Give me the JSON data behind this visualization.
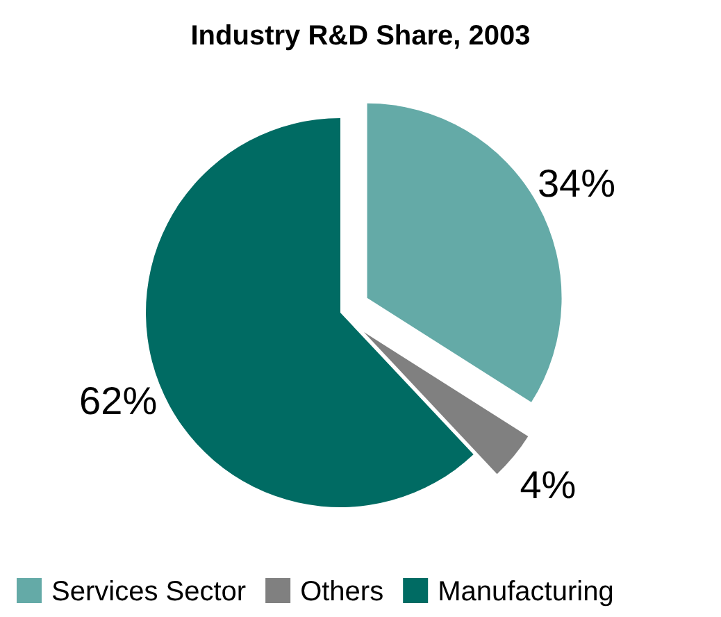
{
  "chart_data": {
    "type": "pie",
    "title": "Industry R&D Share, 2003",
    "categories": [
      "Services Sector",
      "Others",
      "Manufacturing"
    ],
    "values": [
      34,
      4,
      62
    ],
    "colors": [
      "#64aaa7",
      "#808080",
      "#006b63"
    ],
    "value_labels": [
      "34%",
      "4%",
      "62%"
    ],
    "legend": "bottom"
  }
}
